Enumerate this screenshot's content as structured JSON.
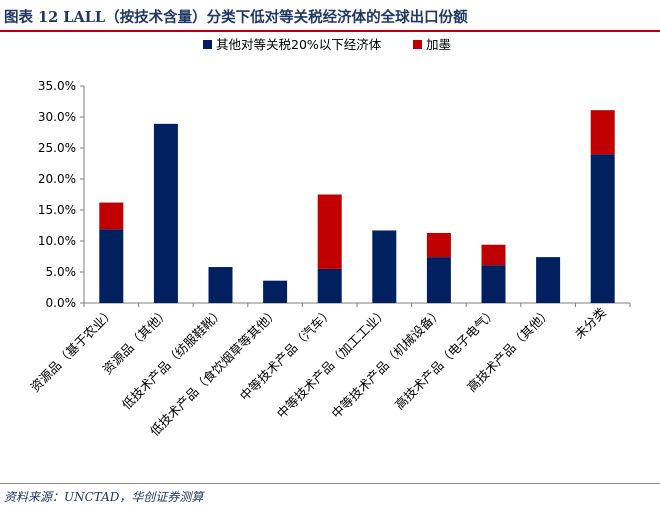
{
  "header": {
    "title": "图表 12  LALL（按技术含量）分类下低对等关税经济体的全球出口份额"
  },
  "footer": {
    "source": "资料来源：UNCTAD，华创证券测算"
  },
  "colors": {
    "series_1": "#002060",
    "series_2": "#c00000",
    "axis": "#7f7f7f",
    "title": "#1f3864"
  },
  "chart_data": {
    "type": "bar",
    "stacked": true,
    "title": "",
    "xlabel": "",
    "ylabel": "",
    "ylim": [
      0,
      35
    ],
    "yticks": [
      "0.0%",
      "5.0%",
      "10.0%",
      "15.0%",
      "20.0%",
      "25.0%",
      "30.0%",
      "35.0%"
    ],
    "grid": false,
    "legend_position": "top",
    "categories": [
      "资源品（基于农业）",
      "资源品（其他）",
      "低技术产品（纺服鞋靴）",
      "低技术产品（食饮烟草等其他）",
      "中等技术产品（汽车）",
      "中等技术产品（加工工业）",
      "中等技术产品（机械设备）",
      "高技术产品（电子电气）",
      "高技术产品（其他）",
      "未分类"
    ],
    "series": [
      {
        "name": "其他对等关税20%以下经济体",
        "color": "#002060",
        "values": [
          11.9,
          28.9,
          5.8,
          3.6,
          5.5,
          11.7,
          7.4,
          6.1,
          7.4,
          24.0
        ]
      },
      {
        "name": "加墨",
        "color": "#c00000",
        "values": [
          4.3,
          0,
          0,
          0,
          12.0,
          0,
          3.9,
          3.3,
          0,
          7.1
        ]
      }
    ]
  }
}
